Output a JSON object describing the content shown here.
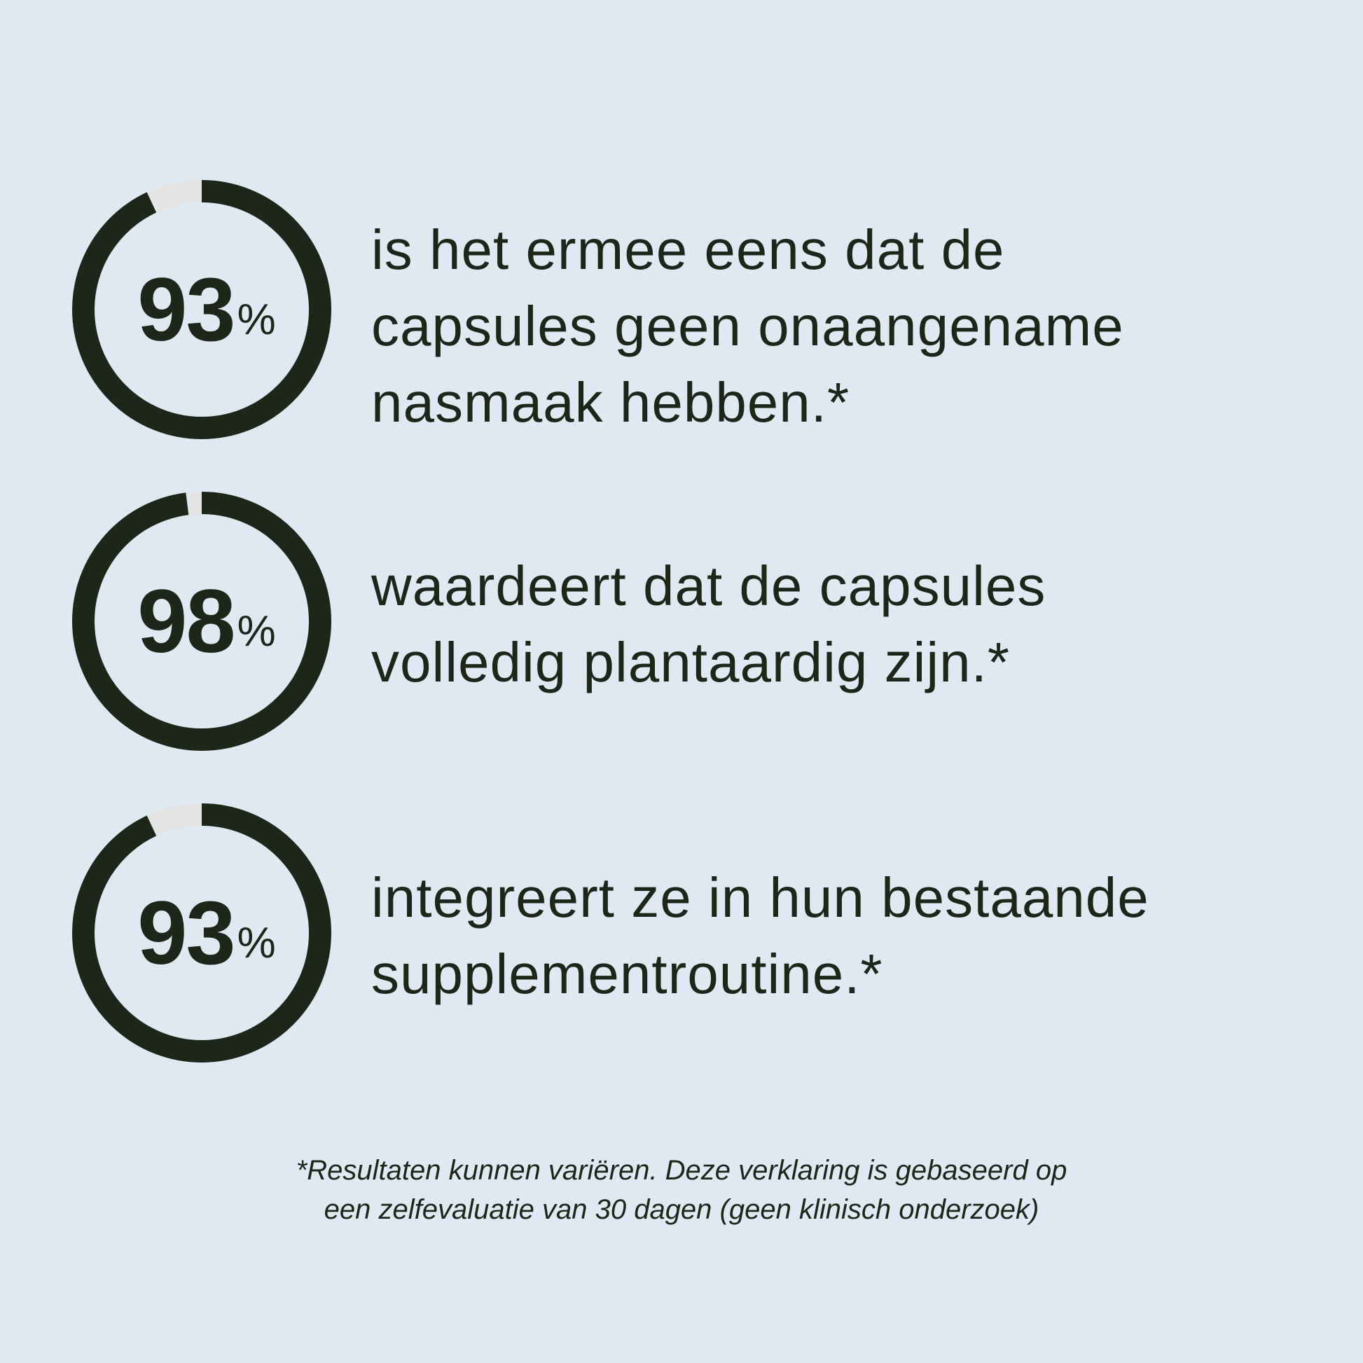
{
  "colors": {
    "background": "#dfe9f2",
    "ring": "#1e2619",
    "ring_remainder": "#e4e4e4",
    "text": "#1e2619"
  },
  "stats": [
    {
      "value": 93,
      "number": "93",
      "unit": "%",
      "text_lines": [
        "is het ermee eens dat de",
        "capsules geen onaangename",
        "nasmaak hebben.*"
      ]
    },
    {
      "value": 98,
      "number": "98",
      "unit": "%",
      "text_lines": [
        "waardeert dat de capsules",
        "volledig plantaardig zijn.*"
      ]
    },
    {
      "value": 93,
      "number": "93",
      "unit": "%",
      "text_lines": [
        "integreert ze in hun bestaande",
        "supplementroutine.*"
      ]
    }
  ],
  "footer": {
    "lines": [
      "*Resultaten kunnen variëren. Deze verklaring is gebaseerd op",
      "een zelfevaluatie van 30 dagen (geen klinisch onderzoek)"
    ]
  }
}
